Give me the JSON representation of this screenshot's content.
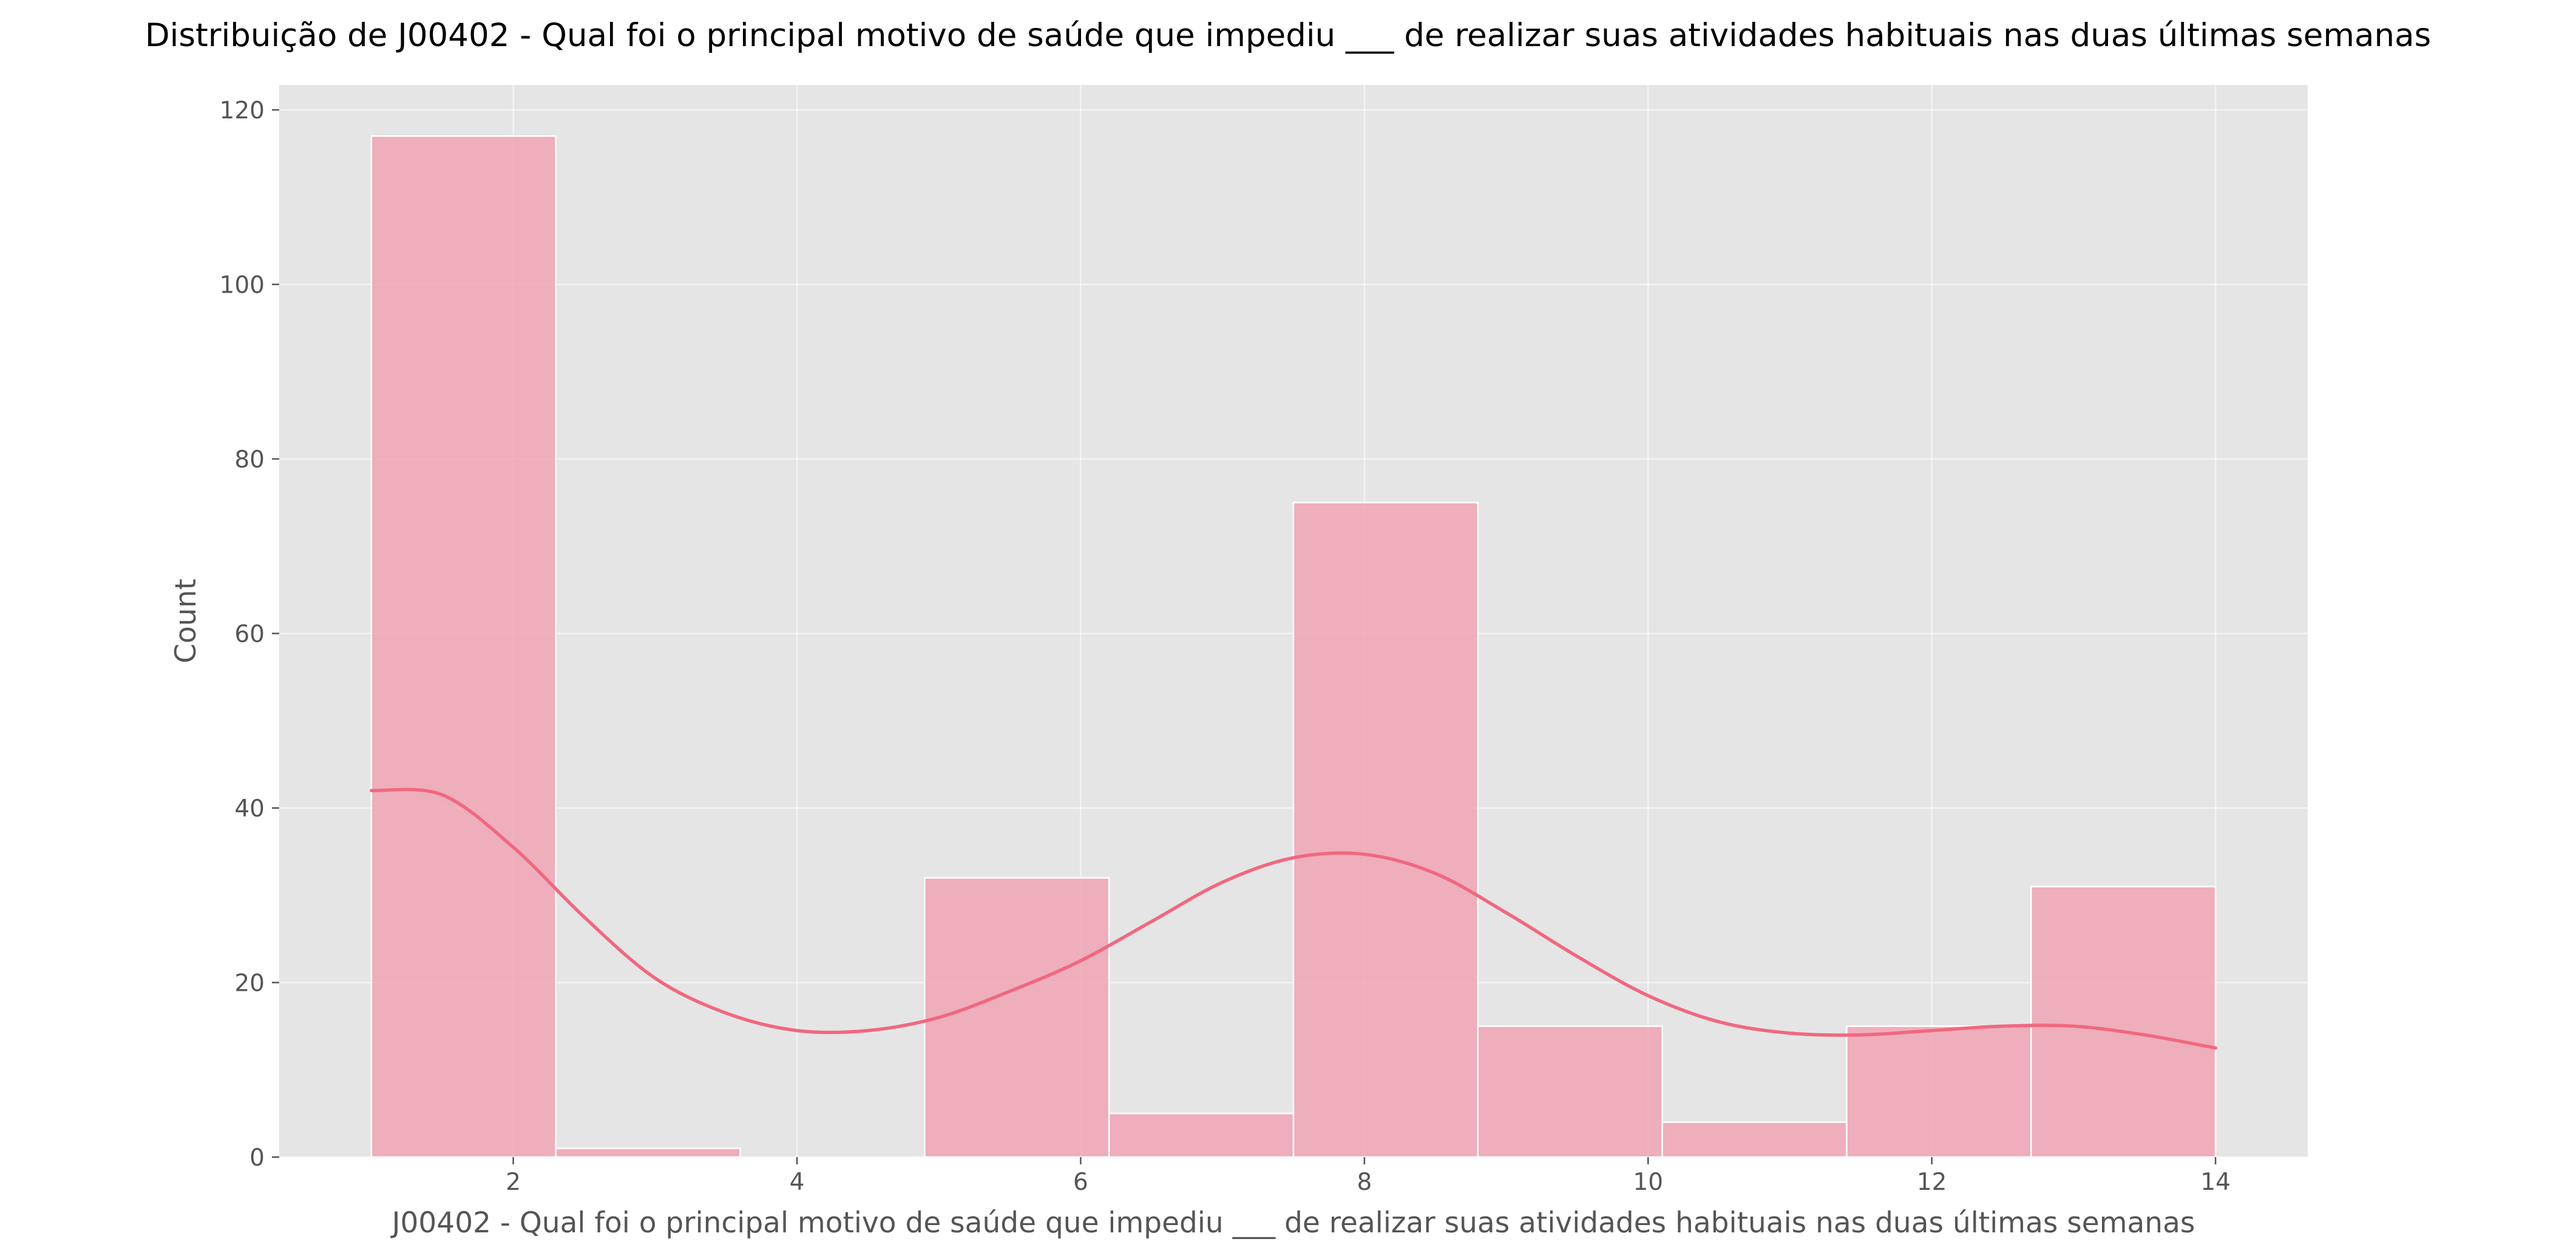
{
  "chart_data": {
    "type": "bar",
    "title": "Distribuição de J00402 -  Qual foi o principal motivo de saúde que impediu ___ de realizar suas atividades habituais nas duas últimas semanas",
    "xlabel": "J00402 -  Qual foi o principal motivo de saúde que impediu ___ de realizar suas atividades habituais nas duas últimas semanas",
    "ylabel": "Count",
    "xlim": [
      0.35,
      14.65
    ],
    "ylim": [
      0,
      122.85
    ],
    "x_ticks": [
      2,
      4,
      6,
      8,
      10,
      12,
      14
    ],
    "y_ticks": [
      0,
      20,
      40,
      60,
      80,
      100,
      120
    ],
    "bin_edges": [
      1.0,
      2.3,
      3.6,
      4.9,
      6.2,
      7.5,
      8.8,
      10.1,
      11.4,
      12.7,
      14.0
    ],
    "values": [
      117,
      1,
      0,
      32,
      5,
      75,
      15,
      4,
      15,
      31
    ],
    "kde": {
      "x": [
        1,
        1.5,
        2,
        2.5,
        3,
        3.5,
        4,
        4.5,
        5,
        5.5,
        6,
        6.5,
        7,
        7.5,
        8,
        8.5,
        9,
        9.5,
        10,
        10.5,
        11,
        11.5,
        12,
        12.5,
        13,
        13.5,
        14
      ],
      "y": [
        42,
        41.5,
        35.5,
        27.5,
        20.5,
        16.5,
        14.5,
        14.5,
        16,
        19,
        22.5,
        27,
        31.5,
        34.3,
        34.7,
        32.5,
        28,
        23,
        18.5,
        15.5,
        14.2,
        14,
        14.5,
        15,
        15,
        14,
        12.5
      ]
    },
    "grid": true,
    "bar_color": "#f0a5b5",
    "line_color": "#f0687f",
    "plot_background": "#e5e5e5"
  }
}
